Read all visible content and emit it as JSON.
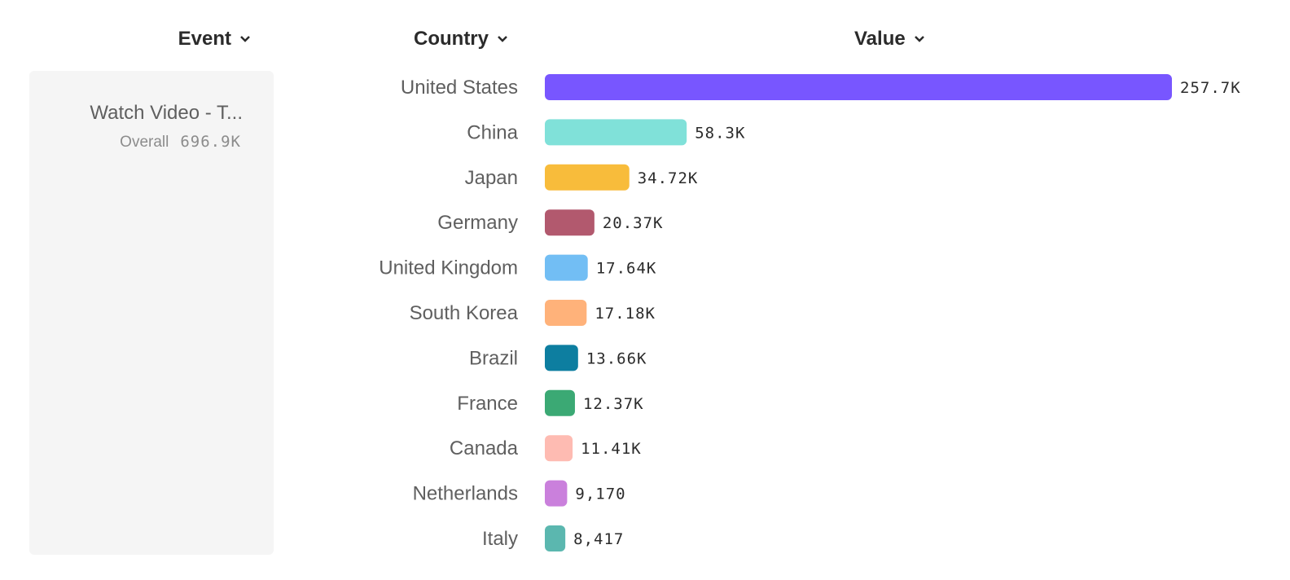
{
  "headers": {
    "event": "Event",
    "country": "Country",
    "value": "Value"
  },
  "event_panel": {
    "name": "Watch Video - T...",
    "overall_label": "Overall",
    "overall_value": "696.9K"
  },
  "chart_data": {
    "type": "bar",
    "orientation": "horizontal",
    "categories": [
      "United States",
      "China",
      "Japan",
      "Germany",
      "United Kingdom",
      "South Korea",
      "Brazil",
      "France",
      "Canada",
      "Netherlands",
      "Italy"
    ],
    "values": [
      257700,
      58300,
      34720,
      20370,
      17640,
      17180,
      13660,
      12370,
      11410,
      9170,
      8417
    ],
    "value_labels": [
      "257.7K",
      "58.3K",
      "34.72K",
      "20.37K",
      "17.64K",
      "17.18K",
      "13.66K",
      "12.37K",
      "11.41K",
      "9,170",
      "8,417"
    ],
    "colors": [
      "#7856FF",
      "#80E1D9",
      "#F8BC3B",
      "#B2596E",
      "#72BEF4",
      "#FFB27A",
      "#0D7EA0",
      "#3BA974",
      "#FEBBB2",
      "#CA80DC",
      "#5BB7AF"
    ],
    "xlim": [
      0,
      257700
    ],
    "grid": false
  }
}
